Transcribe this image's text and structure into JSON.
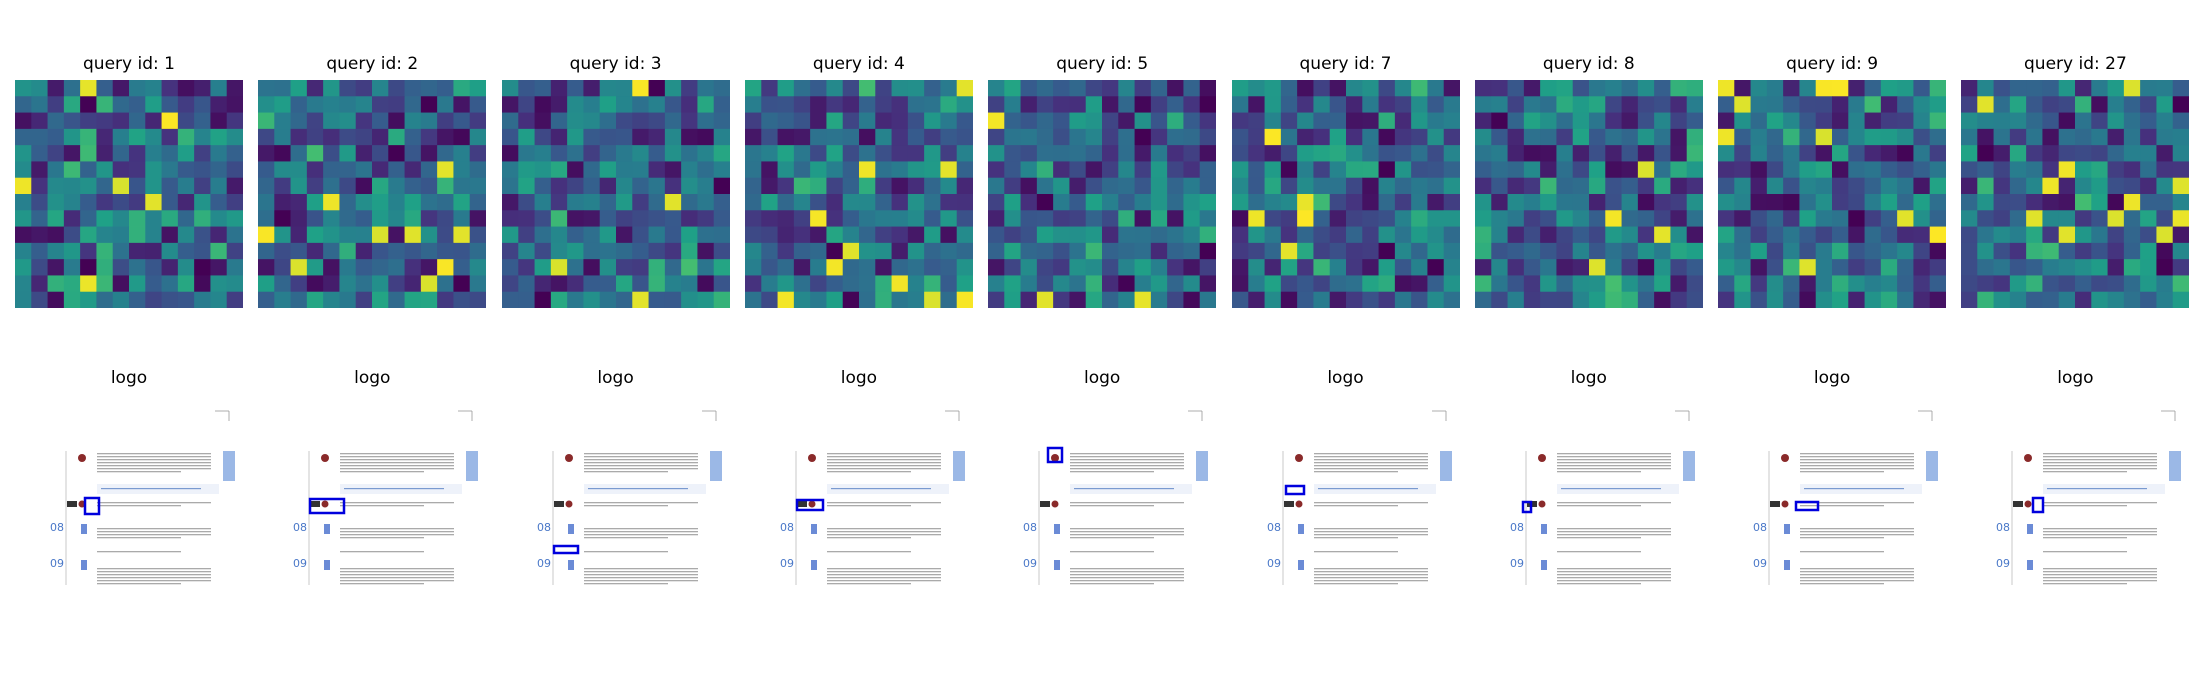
{
  "chart_data": {
    "type": "heatmap",
    "colormap": "viridis",
    "grid": false,
    "panels": [
      {
        "title": "query id: 1",
        "doc_title": "logo"
      },
      {
        "title": "query id: 2",
        "doc_title": "logo"
      },
      {
        "title": "query id: 3",
        "doc_title": "logo"
      },
      {
        "title": "query id: 4",
        "doc_title": "logo"
      },
      {
        "title": "query id: 5",
        "doc_title": "logo"
      },
      {
        "title": "query id: 7",
        "doc_title": "logo"
      },
      {
        "title": "query id: 8",
        "doc_title": "logo"
      },
      {
        "title": "query id: 9",
        "doc_title": "logo"
      },
      {
        "title": "query id: 27",
        "doc_title": "logo"
      }
    ],
    "grid_size": [
      14,
      14
    ],
    "document": {
      "section_numbers": [
        "08",
        "09"
      ],
      "accent_color": "#4a78c8",
      "highlight_color": "#0000dd",
      "sidebar_color": "#9bb8e6"
    }
  }
}
